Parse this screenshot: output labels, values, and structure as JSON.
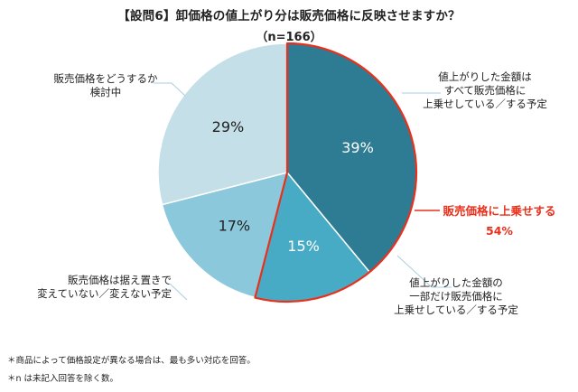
{
  "title": "【設問6】卸価格の値上がり分は販売価格に反映させますか？",
  "subtitle": "（n=166）",
  "chart_data": {
    "type": "pie",
    "title": "【設問6】卸価格の値上がり分は販売価格に反映させますか？",
    "n": 166,
    "slices": [
      {
        "label": "値上がりした金額はすべて販売価格に上乗せしている／する予定",
        "lines": [
          "値上がりした金額は",
          "すべて販売価格に",
          "上乗せしている／する予定"
        ],
        "value": 39,
        "value_label": "39%",
        "color": "#2d7c93"
      },
      {
        "label": "値上がりした金額の一部だけ販売価格に上乗せしている／する予定",
        "lines": [
          "値上がりした金額の",
          "一部だけ販売価格に",
          "上乗せしている／する予定"
        ],
        "value": 15,
        "value_label": "15%",
        "color": "#48abc6"
      },
      {
        "label": "販売価格は据え置きで変えていない／変えない予定",
        "lines": [
          "販売価格は据え置きで",
          "変えていない／変えない予定"
        ],
        "value": 17,
        "value_label": "17%",
        "color": "#8cc8dc"
      },
      {
        "label": "販売価格をどうするか検討中",
        "lines": [
          "販売価格をどうするか",
          "検討中"
        ],
        "value": 29,
        "value_label": "29%",
        "color": "#c4dfe8"
      }
    ],
    "highlight": {
      "label": "販売価格に上乗せする",
      "value": 54,
      "value_label": "54%",
      "color": "#e8301c"
    }
  },
  "notes": [
    "＊商品によって価格設定が異なる場合は、最も多い対応を回答。",
    "＊n は未記入回答を除く数。"
  ]
}
